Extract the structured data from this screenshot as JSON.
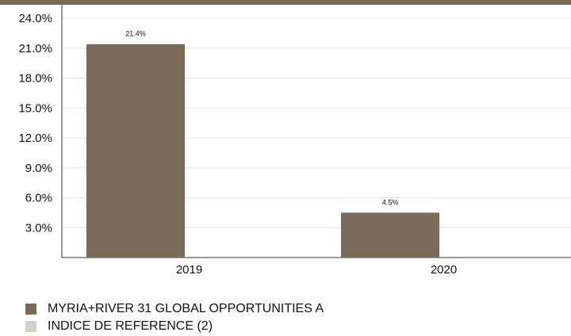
{
  "chart_data": {
    "type": "bar",
    "categories": [
      "2019",
      "2020"
    ],
    "series": [
      {
        "name": "MYRIA+RIVER 31 GLOBAL OPPORTUNITIES A",
        "values": [
          21.4,
          4.5
        ],
        "labels": [
          "21.4%",
          "4.5%"
        ],
        "color": "#7a6b59"
      },
      {
        "name": "INDICE DE REFERENCE (2)",
        "values": [
          null,
          null
        ],
        "labels": [
          "",
          ""
        ],
        "color": "#d6cfc7"
      }
    ],
    "ylim": [
      0,
      24
    ],
    "yticks": [
      3,
      6,
      9,
      12,
      15,
      18,
      21,
      24
    ],
    "ytick_labels": [
      "3.0%",
      "6.0%",
      "9.0%",
      "12.0%",
      "15.0%",
      "18.0%",
      "21.0%",
      "24.0%"
    ],
    "grid": true,
    "legend_position": "bottom-left",
    "title": "",
    "xlabel": "",
    "ylabel": ""
  }
}
